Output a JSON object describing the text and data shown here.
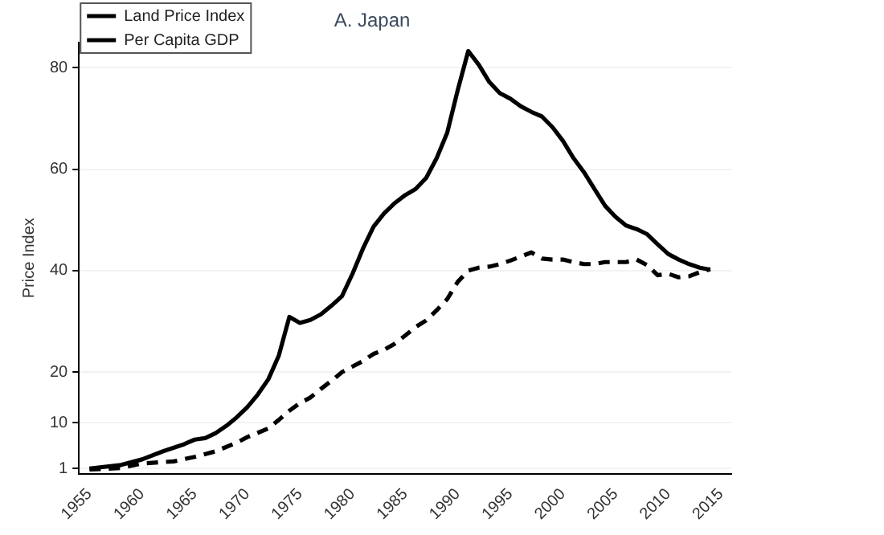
{
  "chart_data": {
    "type": "line",
    "title": "A. Japan",
    "ylabel": "Price Index",
    "xlim": [
      1954,
      2016
    ],
    "xticks": [
      1955,
      1960,
      1965,
      1970,
      1975,
      1980,
      1985,
      1990,
      1995,
      2000,
      2005,
      2010,
      2015
    ],
    "ylim": [
      0,
      85
    ],
    "yticks": [
      1,
      10,
      20,
      40,
      60,
      80
    ],
    "grid": "y",
    "legend": "top left",
    "marker": "none",
    "series": [
      {
        "name": "Land Price Index",
        "color": "#000000",
        "line_style": "solid",
        "x": [
          1955,
          1958,
          1960,
          1962,
          1964,
          1965,
          1966,
          1967,
          1968,
          1969,
          1970,
          1971,
          1972,
          1973,
          1974,
          1975,
          1976,
          1977,
          1978,
          1979,
          1980,
          1981,
          1982,
          1983,
          1984,
          1985,
          1986,
          1987,
          1988,
          1989,
          1990,
          1991,
          1992,
          1993,
          1994,
          1995,
          1996,
          1997,
          1998,
          1999,
          2000,
          2001,
          2002,
          2003,
          2004,
          2005,
          2006,
          2007,
          2008,
          2009,
          2010,
          2011,
          2012,
          2013,
          2014
        ],
        "values": [
          1,
          1.7,
          2.8,
          4.4,
          5.8,
          6.7,
          7,
          8,
          9.4,
          11.1,
          13.1,
          15.6,
          18.6,
          23.3,
          30.9,
          29.7,
          30.3,
          31.4,
          33.1,
          35,
          39.4,
          44.4,
          48.7,
          51.3,
          53.3,
          54.9,
          56.1,
          58.3,
          62.2,
          67.2,
          75.6,
          83.3,
          80.6,
          77.2,
          75,
          73.9,
          72.4,
          71.3,
          70.4,
          68.3,
          65.6,
          62.2,
          59.4,
          56.1,
          52.8,
          50.6,
          48.9,
          48.2,
          47.2,
          45.2,
          43.3,
          42.2,
          41.3,
          40.6,
          40.2
        ]
      },
      {
        "name": "Per Capita GDP",
        "color": "#000000",
        "line_style": "dashed",
        "x": [
          1955,
          1958,
          1960,
          1963,
          1965,
          1967,
          1969,
          1970,
          1972,
          1973,
          1974,
          1975,
          1976,
          1977,
          1978,
          1979,
          1980,
          1981,
          1982,
          1983,
          1984,
          1985,
          1986,
          1987,
          1988,
          1989,
          1990,
          1991,
          1992,
          1993,
          1994,
          1995,
          1996,
          1997,
          1998,
          1999,
          2000,
          2001,
          2002,
          2003,
          2004,
          2005,
          2006,
          2007,
          2008,
          2009,
          2010,
          2011,
          2012,
          2013,
          2014
        ],
        "values": [
          0.8,
          1.1,
          2,
          2.4,
          3.3,
          4.4,
          6.1,
          7.2,
          8.9,
          10.6,
          12.4,
          13.9,
          15,
          16.7,
          18.3,
          20,
          21.1,
          22.2,
          23.6,
          24.4,
          25.6,
          27.2,
          28.9,
          30.2,
          32.2,
          34.4,
          37.8,
          40,
          40.6,
          40.8,
          41.3,
          42,
          42.8,
          43.6,
          42.4,
          42.2,
          42.2,
          41.7,
          41.3,
          41.3,
          41.7,
          41.7,
          41.7,
          42.2,
          41.1,
          39.1,
          39.4,
          38.7,
          38.9,
          39.7,
          40.3
        ]
      }
    ]
  }
}
